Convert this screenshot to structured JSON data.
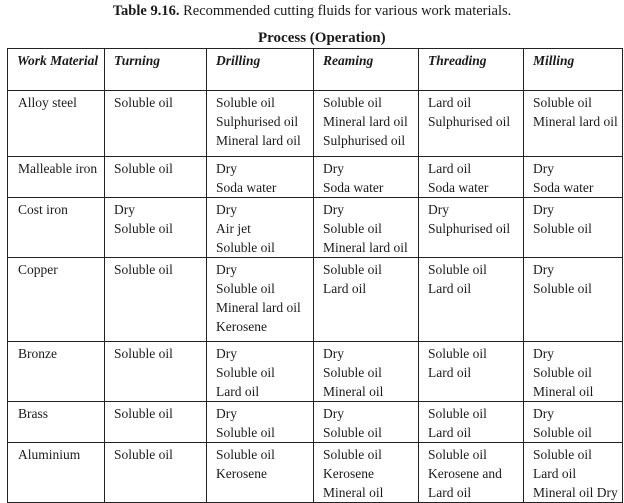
{
  "caption": {
    "label": "Table 9.16.",
    "text": " Recommended cutting fluids for various work materials."
  },
  "subtitle": "Process (Operation)",
  "headers": [
    "Work Material",
    "Turning",
    "Drilling",
    "Reaming",
    "Threading",
    "Milling"
  ],
  "rows": [
    {
      "material": "Alloy steel",
      "cells": [
        [
          "Soluble oil"
        ],
        [
          "Soluble oil",
          "Sulphurised oil",
          "Mineral lard oil"
        ],
        [
          "Soluble oil",
          "Mineral lard oil",
          "Sulphurised oil"
        ],
        [
          "Lard oil",
          "Sulphurised oil"
        ],
        [
          "Soluble oil",
          "Mineral lard oil"
        ]
      ]
    },
    {
      "material": "Malleable iron",
      "cells": [
        [
          "Soluble oil"
        ],
        [
          "Dry",
          "Soda water"
        ],
        [
          "Dry",
          "Soda water"
        ],
        [
          "Lard oil",
          "Soda water"
        ],
        [
          "Dry",
          "Soda water"
        ]
      ]
    },
    {
      "material": "Cost iron",
      "cells": [
        [
          "Dry",
          "Soluble oil"
        ],
        [
          "Dry",
          "Air jet",
          "Soluble oil"
        ],
        [
          "Dry",
          "Soluble oil",
          "Mineral lard oil"
        ],
        [
          "Dry",
          "Sulphurised oil"
        ],
        [
          "Dry",
          "Soluble oil"
        ]
      ]
    },
    {
      "material": "Copper",
      "cells": [
        [
          "Soluble oil"
        ],
        [
          "Dry",
          "Soluble oil",
          "Mineral lard oil",
          "Kerosene"
        ],
        [
          "Soluble oil",
          "Lard oil"
        ],
        [
          "Soluble oil",
          "Lard oil"
        ],
        [
          "Dry",
          "Soluble oil"
        ]
      ]
    },
    {
      "material": "Bronze",
      "cells": [
        [
          "Soluble oil"
        ],
        [
          "Dry",
          "Soluble oil",
          "Lard oil"
        ],
        [
          "Dry",
          "Soluble oil",
          "Mineral oil"
        ],
        [
          "Soluble oil",
          "Lard oil"
        ],
        [
          "Dry",
          "Soluble oil",
          "Mineral oil"
        ]
      ]
    },
    {
      "material": "Brass",
      "cells": [
        [
          "Soluble oil"
        ],
        [
          "Dry",
          "Soluble oil"
        ],
        [
          "Dry",
          "Soluble oil"
        ],
        [
          "Soluble oil",
          "Lard oil"
        ],
        [
          "Dry",
          "Soluble oil"
        ]
      ]
    },
    {
      "material": "Aluminium",
      "cells": [
        [
          "Soluble oil"
        ],
        [
          "Soluble oil",
          "Kerosene"
        ],
        [
          "Soluble oil",
          "Kerosene",
          "Mineral oil"
        ],
        [
          "Soluble oil",
          "Kerosene and",
          "Lard oil"
        ],
        [
          "Soluble oil",
          "Lard oil",
          "Mineral oil Dry"
        ]
      ]
    }
  ]
}
